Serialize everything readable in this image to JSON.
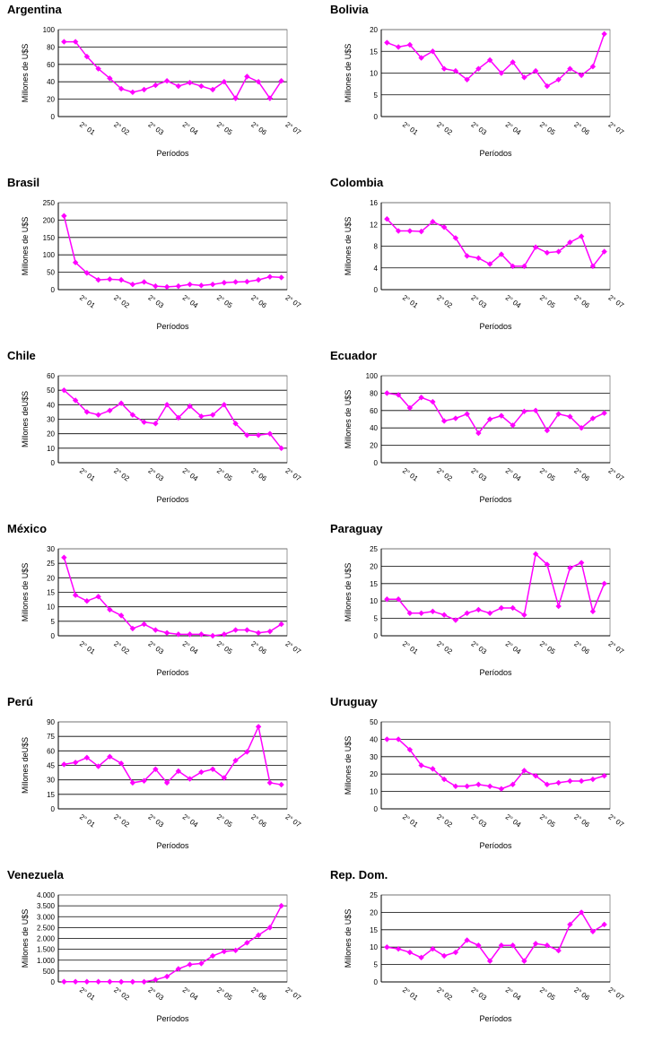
{
  "chart_data": [
    {
      "type": "line",
      "title": "Argentina",
      "ylabel": "Millones de U$S",
      "xlabel": "Períodos",
      "color": "#ff00ff",
      "ylim": [
        0,
        100
      ],
      "yticks": [
        0,
        20,
        40,
        60,
        80,
        100
      ],
      "grid": true,
      "categories": [
        null,
        "2° 01",
        null,
        null,
        "2° 02",
        null,
        null,
        "2° 03",
        null,
        null,
        "2° 04",
        null,
        null,
        "2° 05",
        null,
        null,
        "2° 06",
        null,
        null,
        "2° 07"
      ],
      "values": [
        86,
        86,
        69,
        55,
        44,
        32,
        28,
        31,
        36,
        41,
        35,
        39,
        35,
        31,
        40,
        21,
        46,
        40,
        21,
        41
      ]
    },
    {
      "type": "line",
      "title": "Bolivia",
      "ylabel": "Millones de U$S",
      "xlabel": "Períodos",
      "color": "#ff00ff",
      "ylim": [
        0,
        20
      ],
      "yticks": [
        0,
        5,
        10,
        15,
        20
      ],
      "grid": true,
      "categories": [
        null,
        "2° 01",
        null,
        null,
        "2° 02",
        null,
        null,
        "2° 03",
        null,
        null,
        "2° 04",
        null,
        null,
        "2° 05",
        null,
        null,
        "2° 06",
        null,
        null,
        "2° 07"
      ],
      "values": [
        17,
        16,
        16.5,
        13.5,
        15,
        11,
        10.5,
        8.5,
        11,
        13,
        10,
        12.5,
        9,
        10.5,
        7,
        8.5,
        11,
        9.5,
        11.5,
        19
      ]
    },
    {
      "type": "line",
      "title": "Brasil",
      "ylabel": "Millones de U$S",
      "xlabel": "Períodos",
      "color": "#ff00ff",
      "ylim": [
        0,
        250
      ],
      "yticks": [
        0,
        50,
        100,
        150,
        200,
        250
      ],
      "grid": true,
      "categories": [
        null,
        "2° 01",
        null,
        null,
        "2° 02",
        null,
        null,
        "2° 03",
        null,
        null,
        "2° 04",
        null,
        null,
        "2° 05",
        null,
        null,
        "2° 06",
        null,
        null,
        "2° 07"
      ],
      "values": [
        212,
        78,
        48,
        28,
        30,
        28,
        15,
        22,
        10,
        8,
        10,
        15,
        12,
        15,
        20,
        22,
        23,
        28,
        37,
        35
      ]
    },
    {
      "type": "line",
      "title": "Colombia",
      "ylabel": "Millones de U$S",
      "xlabel": "Períodos",
      "color": "#ff00ff",
      "ylim": [
        0,
        16
      ],
      "yticks": [
        0,
        4,
        8,
        12,
        16
      ],
      "grid": true,
      "categories": [
        null,
        "2° 01",
        null,
        null,
        "2° 02",
        null,
        null,
        "2° 03",
        null,
        null,
        "2° 04",
        null,
        null,
        "2° 05",
        null,
        null,
        "2° 06",
        null,
        null,
        "2° 07"
      ],
      "values": [
        13,
        10.8,
        10.8,
        10.7,
        12.5,
        11.5,
        9.5,
        6.2,
        5.8,
        4.7,
        6.5,
        4.3,
        4.3,
        7.8,
        6.8,
        7,
        8.7,
        9.8,
        4.3,
        7
      ]
    },
    {
      "type": "line",
      "title": "Chile",
      "ylabel": "Millones deU$S",
      "xlabel": "Períodos",
      "color": "#ff00ff",
      "ylim": [
        0,
        60
      ],
      "yticks": [
        0,
        10,
        20,
        30,
        40,
        50,
        60
      ],
      "grid": true,
      "categories": [
        null,
        "2° 01",
        null,
        null,
        "2° 02",
        null,
        null,
        "2° 03",
        null,
        null,
        "2° 04",
        null,
        null,
        "2° 05",
        null,
        null,
        "2° 06",
        null,
        null,
        "2° 07"
      ],
      "values": [
        50,
        43,
        35,
        33,
        36,
        41,
        33,
        28,
        27,
        40,
        31,
        39,
        32,
        33,
        40,
        27,
        19,
        19,
        20,
        10
      ]
    },
    {
      "type": "line",
      "title": "Ecuador",
      "ylabel": "Millones de U$S",
      "xlabel": "Períodos",
      "color": "#ff00ff",
      "ylim": [
        0,
        100
      ],
      "yticks": [
        0,
        20,
        40,
        60,
        80,
        100
      ],
      "grid": true,
      "categories": [
        null,
        "2° 01",
        null,
        null,
        "2° 02",
        null,
        null,
        "2° 03",
        null,
        null,
        "2° 04",
        null,
        null,
        "2° 05",
        null,
        null,
        "2° 06",
        null,
        null,
        "2° 07"
      ],
      "values": [
        80,
        78,
        63,
        75,
        70,
        48,
        51,
        56,
        34,
        50,
        54,
        43,
        59,
        60,
        37,
        56,
        53,
        40,
        51,
        57
      ]
    },
    {
      "type": "line",
      "title": "México",
      "ylabel": "Millones de U$S",
      "xlabel": "Períodos",
      "color": "#ff00ff",
      "ylim": [
        0,
        30
      ],
      "yticks": [
        0,
        5,
        10,
        15,
        20,
        25,
        30
      ],
      "grid": true,
      "categories": [
        null,
        "2° 01",
        null,
        null,
        "2° 02",
        null,
        null,
        "2° 03",
        null,
        null,
        "2° 04",
        null,
        null,
        "2° 05",
        null,
        null,
        "2° 06",
        null,
        null,
        "2° 07"
      ],
      "values": [
        27,
        14,
        12,
        13.5,
        9,
        7,
        2.5,
        4,
        2,
        1,
        0.5,
        0.5,
        0.5,
        0,
        0.5,
        2,
        2,
        1,
        1.5,
        4
      ]
    },
    {
      "type": "line",
      "title": "Paraguay",
      "ylabel": "Millones de U$S",
      "xlabel": "Períodos",
      "color": "#ff00ff",
      "ylim": [
        0,
        25
      ],
      "yticks": [
        0,
        5,
        10,
        15,
        20,
        25
      ],
      "grid": true,
      "categories": [
        null,
        "2° 01",
        null,
        null,
        "2° 02",
        null,
        null,
        "2° 03",
        null,
        null,
        "2° 04",
        null,
        null,
        "2° 05",
        null,
        null,
        "2° 06",
        null,
        null,
        "2° 07"
      ],
      "values": [
        10.5,
        10.5,
        6.5,
        6.5,
        7,
        6,
        4.5,
        6.5,
        7.5,
        6.5,
        8,
        8,
        6,
        23.5,
        20.5,
        8.5,
        19.5,
        21,
        7,
        15
      ]
    },
    {
      "type": "line",
      "title": "Perú",
      "ylabel": "Millones deU$S",
      "xlabel": "Períodos",
      "color": "#ff00ff",
      "ylim": [
        0,
        90
      ],
      "yticks": [
        0,
        15,
        30,
        45,
        60,
        75,
        90
      ],
      "grid": true,
      "categories": [
        null,
        "2° 01",
        null,
        null,
        "2° 02",
        null,
        null,
        "2° 03",
        null,
        null,
        "2° 04",
        null,
        null,
        "2° 05",
        null,
        null,
        "2° 06",
        null,
        null,
        "2° 07"
      ],
      "values": [
        46,
        48,
        53,
        44,
        54,
        47,
        27,
        29,
        41,
        27,
        39,
        31,
        38,
        41,
        32,
        50,
        59,
        85,
        27,
        25
      ]
    },
    {
      "type": "line",
      "title": "Uruguay",
      "ylabel": "Millones de U$S",
      "xlabel": "Períodos",
      "color": "#ff00ff",
      "ylim": [
        0,
        50
      ],
      "yticks": [
        0,
        10,
        20,
        30,
        40,
        50
      ],
      "grid": true,
      "categories": [
        null,
        "2° 01",
        null,
        null,
        "2° 02",
        null,
        null,
        "2° 03",
        null,
        null,
        "2° 04",
        null,
        null,
        "2° 05",
        null,
        null,
        "2° 06",
        null,
        null,
        "2° 07"
      ],
      "values": [
        40,
        40,
        34,
        25,
        23,
        17,
        13,
        13,
        14,
        13,
        11.5,
        14,
        22,
        19,
        14,
        15,
        16,
        16,
        17,
        19
      ]
    },
    {
      "type": "line",
      "title": "Venezuela",
      "ylabel": "Millones de U$S",
      "xlabel": "Períodos",
      "color": "#ff00ff",
      "ylim": [
        0,
        4000
      ],
      "yticks": [
        0,
        500,
        {
          "value": 1000,
          "label": "1.000"
        },
        {
          "value": 1500,
          "label": "1.500"
        },
        {
          "value": 2000,
          "label": "2.000"
        },
        {
          "value": 2500,
          "label": "2.500"
        },
        {
          "value": 3000,
          "label": "3.000"
        },
        {
          "value": 3500,
          "label": "3.500"
        },
        {
          "value": 4000,
          "label": "4.000"
        }
      ],
      "grid": true,
      "categories": [
        null,
        "2° 01",
        null,
        null,
        "2° 02",
        null,
        null,
        "2° 03",
        null,
        null,
        "2° 04",
        null,
        null,
        "2° 05",
        null,
        null,
        "2° 06",
        null,
        null,
        "2° 07"
      ],
      "values": [
        10,
        10,
        10,
        10,
        10,
        5,
        5,
        5,
        100,
        250,
        600,
        800,
        850,
        1200,
        1400,
        1450,
        1800,
        2150,
        2500,
        3500
      ]
    },
    {
      "type": "line",
      "title": "Rep. Dom.",
      "ylabel": "Millones de U$S",
      "xlabel": "Períodos",
      "color": "#ff00ff",
      "ylim": [
        0,
        25
      ],
      "yticks": [
        0,
        5,
        10,
        15,
        20,
        25
      ],
      "grid": true,
      "categories": [
        null,
        "2° 01",
        null,
        null,
        "2° 02",
        null,
        null,
        "2° 03",
        null,
        null,
        "2° 04",
        null,
        null,
        "2° 05",
        null,
        null,
        "2° 06",
        null,
        null,
        "2° 07"
      ],
      "values": [
        10,
        9.5,
        8.5,
        7,
        9.5,
        7.5,
        8.5,
        12,
        10.5,
        6,
        10.5,
        10.5,
        6,
        11,
        10.5,
        9,
        16.5,
        20,
        14.5,
        16.5
      ]
    }
  ]
}
